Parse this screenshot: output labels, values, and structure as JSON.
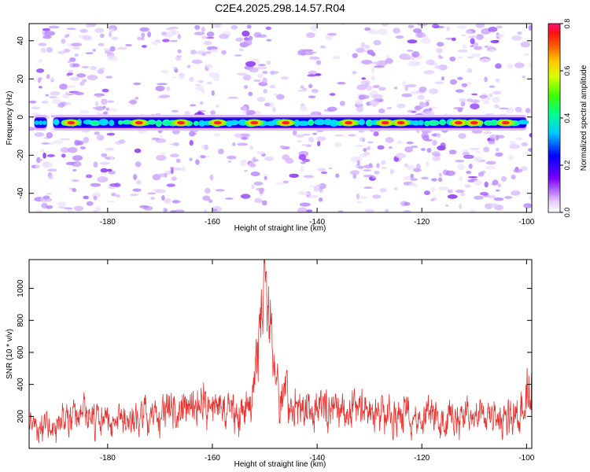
{
  "title": "C2E4.2025.298.14.57.R04",
  "chart_data": [
    {
      "type": "heatmap",
      "name": "spectrogram",
      "xlabel": "Height of straight line (km)",
      "ylabel": "Frequency (Hz)",
      "xlim": [
        -195,
        -99
      ],
      "ylim": [
        -50,
        49
      ],
      "xticks": [
        -180,
        -160,
        -140,
        -120,
        -100
      ],
      "yticks": [
        -40,
        -20,
        0,
        20,
        40
      ],
      "colorbar": {
        "label": "Normalized spectral amplitude",
        "range": [
          0,
          0.8
        ],
        "ticks": [
          "0.0",
          "0.2",
          "0.4",
          "0.6",
          "0.8"
        ]
      },
      "band": {
        "center_hz": -3,
        "x_range": [
          -194,
          -100
        ],
        "strong_spots_x": [
          -187,
          -174,
          -166,
          -159,
          -152,
          -146,
          -134,
          -127,
          -124,
          -113,
          -110,
          -104
        ],
        "gap_x": -191
      },
      "speckle_columns_x": [
        -192,
        -186,
        -181,
        -168,
        -161,
        -152,
        -141,
        -131,
        -129,
        -121,
        -117,
        -111,
        -107
      ]
    },
    {
      "type": "line",
      "name": "snr-trace",
      "xlabel": "Height of straight line (km)",
      "ylabel": "SNR (10 * v/v)",
      "xlim": [
        -195,
        -99
      ],
      "ylim": [
        0,
        1180
      ],
      "xticks": [
        -180,
        -160,
        -140,
        -120,
        -100
      ],
      "yticks": [
        200,
        400,
        600,
        800,
        1000
      ],
      "series": [
        {
          "name": "SNR",
          "color": "#e8322e",
          "envelope_x": [
            -195,
            -190,
            -186,
            -183,
            -180,
            -176,
            -172,
            -168,
            -165,
            -162,
            -160,
            -158,
            -155,
            -153,
            -152,
            -151,
            -150,
            -149,
            -148,
            -146,
            -144,
            -142,
            -140,
            -136,
            -132,
            -128,
            -124,
            -120,
            -116,
            -112,
            -108,
            -104,
            -101,
            -100
          ],
          "envelope_y": [
            150,
            160,
            230,
            200,
            180,
            200,
            230,
            260,
            300,
            280,
            300,
            270,
            250,
            300,
            450,
            700,
            900,
            780,
            350,
            320,
            300,
            270,
            260,
            280,
            270,
            240,
            230,
            220,
            220,
            220,
            230,
            220,
            280,
            380
          ]
        }
      ]
    }
  ]
}
